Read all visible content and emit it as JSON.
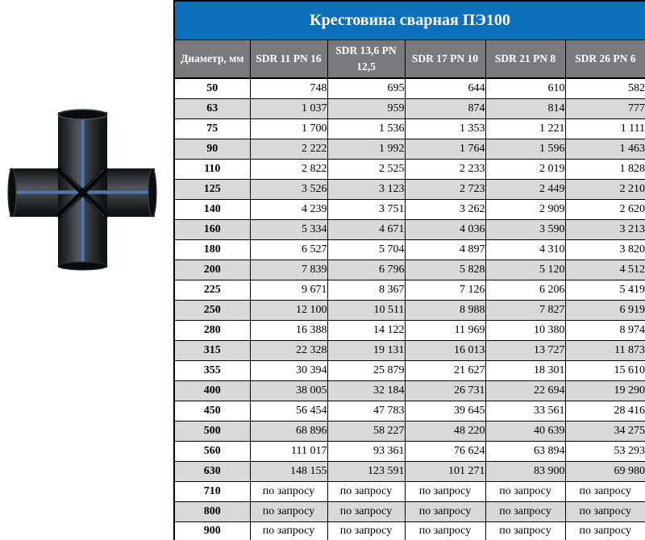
{
  "title": "Крестовина сварная ПЭ100",
  "product_image": {
    "name": "welded-cross-fitting-pe100",
    "description": "Чёрная сварная крестовина из полиэтилена с синими продольными полосами",
    "colors": {
      "pipe_dark": "#141517",
      "pipe_mid": "#3c4045",
      "pipe_highlight": "#575c62",
      "stripe_blue": "#4d6f9e",
      "weld_seam": "#070708"
    }
  },
  "colors": {
    "title_bg": "#0d70bd",
    "title_text": "#ffffff",
    "header_bg": "#7a7a7c",
    "header_text": "#ffffff",
    "row_alt_bg": "#d9d9d9",
    "border": "#000000"
  },
  "table": {
    "columns": [
      "Диаметр, мм",
      "SDR 11 PN 16",
      "SDR 13,6 PN 12,5",
      "SDR 17 PN 10",
      "SDR 21 PN 8",
      "SDR 26 PN 6"
    ],
    "on_request_label": "по запросу",
    "rows": [
      {
        "diameter": "50",
        "prices": [
          "748",
          "695",
          "644",
          "610",
          "582"
        ]
      },
      {
        "diameter": "63",
        "prices": [
          "1 037",
          "959",
          "874",
          "814",
          "777"
        ]
      },
      {
        "diameter": "75",
        "prices": [
          "1 700",
          "1 536",
          "1 353",
          "1 221",
          "1 111"
        ]
      },
      {
        "diameter": "90",
        "prices": [
          "2 222",
          "1 992",
          "1 764",
          "1 596",
          "1 463"
        ]
      },
      {
        "diameter": "110",
        "prices": [
          "2 822",
          "2 525",
          "2 233",
          "2 019",
          "1 828"
        ]
      },
      {
        "diameter": "125",
        "prices": [
          "3 526",
          "3 123",
          "2 723",
          "2 449",
          "2 210"
        ]
      },
      {
        "diameter": "140",
        "prices": [
          "4 239",
          "3 751",
          "3 262",
          "2 909",
          "2 620"
        ]
      },
      {
        "diameter": "160",
        "prices": [
          "5 334",
          "4 671",
          "4 036",
          "3 590",
          "3 213"
        ]
      },
      {
        "diameter": "180",
        "prices": [
          "6 527",
          "5 704",
          "4 897",
          "4 310",
          "3 820"
        ]
      },
      {
        "diameter": "200",
        "prices": [
          "7 839",
          "6 796",
          "5 828",
          "5 120",
          "4 512"
        ]
      },
      {
        "diameter": "225",
        "prices": [
          "9 671",
          "8 367",
          "7 126",
          "6 206",
          "5 419"
        ]
      },
      {
        "diameter": "250",
        "prices": [
          "12 100",
          "10 511",
          "8 988",
          "7 827",
          "6 919"
        ]
      },
      {
        "diameter": "280",
        "prices": [
          "16 388",
          "14 122",
          "11 969",
          "10 380",
          "8 974"
        ]
      },
      {
        "diameter": "315",
        "prices": [
          "22 328",
          "19 131",
          "16 013",
          "13 727",
          "11 873"
        ]
      },
      {
        "diameter": "355",
        "prices": [
          "30 394",
          "25 879",
          "21 627",
          "18 301",
          "15 610"
        ]
      },
      {
        "diameter": "400",
        "prices": [
          "38 005",
          "32 184",
          "26 731",
          "22 694",
          "19 290"
        ]
      },
      {
        "diameter": "450",
        "prices": [
          "56 454",
          "47 783",
          "39 645",
          "33 561",
          "28 416"
        ]
      },
      {
        "diameter": "500",
        "prices": [
          "68 896",
          "58 227",
          "48 220",
          "40 639",
          "34 275"
        ]
      },
      {
        "diameter": "560",
        "prices": [
          "111 017",
          "93 361",
          "76 624",
          "63 894",
          "53 293"
        ]
      },
      {
        "diameter": "630",
        "prices": [
          "148 155",
          "123 591",
          "101 271",
          "83 900",
          "69 980"
        ]
      },
      {
        "diameter": "710",
        "prices": [
          "по запросу",
          "по запросу",
          "по запросу",
          "по запросу",
          "по запросу"
        ]
      },
      {
        "diameter": "800",
        "prices": [
          "по запросу",
          "по запросу",
          "по запросу",
          "по запросу",
          "по запросу"
        ]
      },
      {
        "diameter": "900",
        "prices": [
          "по запросу",
          "по запросу",
          "по запросу",
          "по запросу",
          "по запросу"
        ]
      }
    ]
  }
}
